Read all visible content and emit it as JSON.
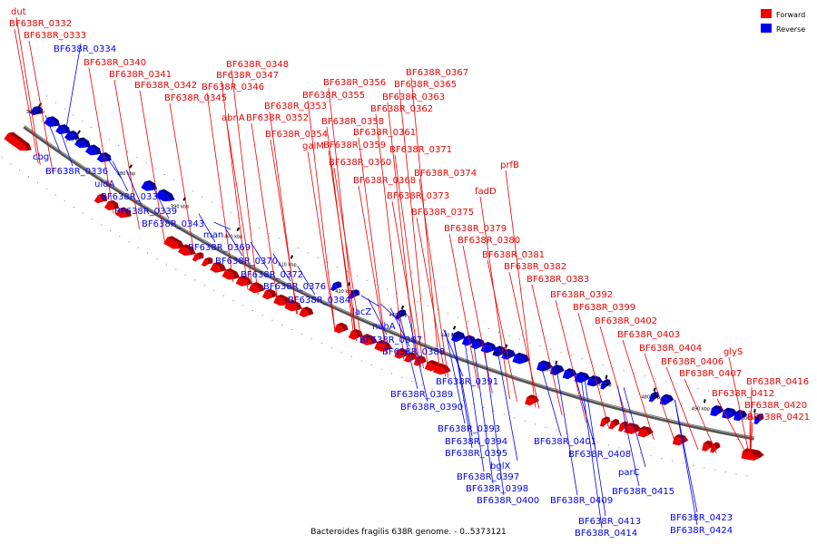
{
  "caption": "Bacteroides fragilis 638R genome. - 0..5373121",
  "colors": {
    "forward": "#ee0000",
    "reverse": "#0000ee"
  },
  "legend": [
    {
      "label": "Forward",
      "strand": "forward"
    },
    {
      "label": "Reverse",
      "strand": "reverse"
    }
  ],
  "kbp_ticks": [
    "360 kbp",
    "370 kbp",
    "380 kbp",
    "390 kbp",
    "400 kbp",
    "410 kbp",
    "420 kbp",
    "430 kbp",
    "440 kbp",
    "450 kbp",
    "460 kbp",
    "470 kbp",
    "480 kbp",
    "490 kbp",
    "500 kbp"
  ],
  "forward_labels": [
    "dut",
    "BF638R_0332",
    "BF638R_0333",
    "BF638R_0340",
    "BF638R_0341",
    "BF638R_0342",
    "BF638R_0345",
    "BF638R_0348",
    "BF638R_0347",
    "BF638R_0346",
    "abnA",
    "BF638R_0356",
    "BF638R_0355",
    "BF638R_0353",
    "BF638R_0352",
    "BF638R_0354",
    "galM",
    "BF638R_0358",
    "BF638R_0359",
    "BF638R_0360",
    "BF638R_0367",
    "BF638R_0365",
    "BF638R_0363",
    "BF638R_0362",
    "BF638R_0361",
    "BF638R_0371",
    "BF638R_0368",
    "BF638R_0374",
    "prfB",
    "fadD",
    "BF638R_0373",
    "BF638R_0375",
    "BF638R_0379",
    "BF638R_0380",
    "BF638R_0381",
    "BF638R_0382",
    "BF638R_0383",
    "BF638R_0392",
    "BF638R_0399",
    "BF638R_0402",
    "BF638R_0403",
    "BF638R_0404",
    "glyS",
    "BF638R_0406",
    "BF638R_0407",
    "BF638R_0416",
    "BF638R_0412",
    "BF638R_0420",
    "BF638R_0421"
  ],
  "reverse_labels": [
    "BF638R_0334",
    "cbg",
    "BF638R_0336",
    "uidA",
    "BF638R_0338",
    "BF638R_0339",
    "BF638R_0343",
    "man",
    "BF638R_0369",
    "BF638R_0370",
    "BF638R_0372",
    "BF638R_0376",
    "BF638R_0384",
    "lacZ",
    "nahA",
    "BF638R_0387",
    "BF638R_0388",
    "BF638R_0391",
    "BF638R_0389",
    "BF638R_0390",
    "BF638R_0393",
    "BF638R_0394",
    "BF638R_0395",
    "bglX",
    "BF638R_0397",
    "BF638R_0398",
    "BF638R_0400",
    "BF638R_0401",
    "BF638R_0408",
    "BF638R_0409",
    "parC",
    "BF638R_0415",
    "BF638R_0413",
    "BF638R_0414",
    "BF638R_0423",
    "BF638R_0424"
  ]
}
